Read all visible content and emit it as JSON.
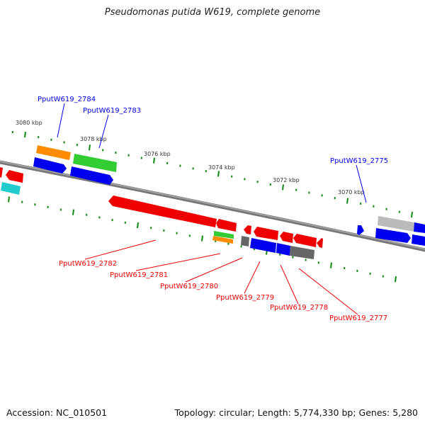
{
  "title": "Pseudomonas putida W619, complete genome",
  "accession": "Accession: NC_010501",
  "summary": "Topology: circular; Length: 5,774,330 bp; Genes: 5,280",
  "ticks": [
    "3080 kbp",
    "3078 kbp",
    "3076 kbp",
    "3074 kbp",
    "3072 kbp",
    "3070 kbp"
  ],
  "labels_forward": [
    "PputW619_2784",
    "PputW619_2783",
    "PputW619_2775"
  ],
  "labels_reverse": [
    "PputW619_2782",
    "PputW619_2781",
    "PputW619_2780",
    "PputW619_2779",
    "PputW619_2778",
    "PputW619_2777"
  ],
  "colors": {
    "forward_label": "#0000ee",
    "reverse_label": "#ee0000",
    "tick": "#118811",
    "backbone": "#888888"
  }
}
